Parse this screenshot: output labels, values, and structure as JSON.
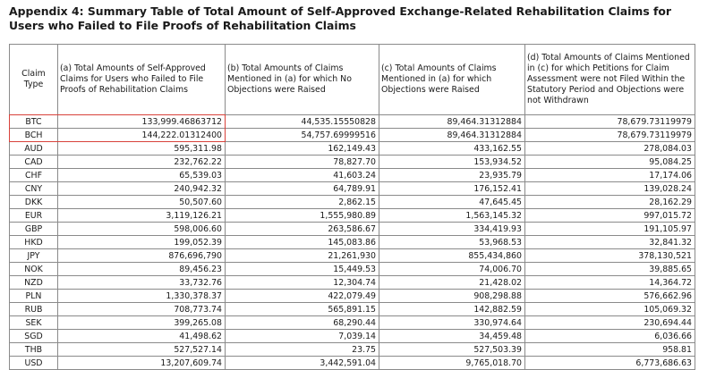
{
  "title": "Appendix 4: Summary Table of Total Amount of Self-Approved Exchange-Related Rehabilitation Claims for Users who Failed to File Proofs of Rehabilitation Claims",
  "headers": {
    "claim_type": "Claim Type",
    "a": "(a) Total Amounts of Self-Approved Claims for Users who Failed to File Proofs of Rehabilitation Claims",
    "b": "(b) Total Amounts of Claims Mentioned in (a) for which No Objections were Raised",
    "c": "(c) Total Amounts of Claims Mentioned in (a) for which Objections were Raised",
    "d": "(d) Total Amounts of Claims Mentioned in (c) for which Petitions for Claim Assessment were not Filed Within the Statutory Period and Objections were not Withdrawn"
  },
  "highlight_color": "#d8413a",
  "highlighted_rows": [
    "BTC",
    "BCH"
  ],
  "rows": [
    {
      "type": "BTC",
      "a": "133,999.46863712",
      "b": "44,535.15550828",
      "c": "89,464.31312884",
      "d": "78,679.73119979"
    },
    {
      "type": "BCH",
      "a": "144,222.01312400",
      "b": "54,757.69999516",
      "c": "89,464.31312884",
      "d": "78,679.73119979"
    },
    {
      "type": "AUD",
      "a": "595,311.98",
      "b": "162,149.43",
      "c": "433,162.55",
      "d": "278,084.03"
    },
    {
      "type": "CAD",
      "a": "232,762.22",
      "b": "78,827.70",
      "c": "153,934.52",
      "d": "95,084.25"
    },
    {
      "type": "CHF",
      "a": "65,539.03",
      "b": "41,603.24",
      "c": "23,935.79",
      "d": "17,174.06"
    },
    {
      "type": "CNY",
      "a": "240,942.32",
      "b": "64,789.91",
      "c": "176,152.41",
      "d": "139,028.24"
    },
    {
      "type": "DKK",
      "a": "50,507.60",
      "b": "2,862.15",
      "c": "47,645.45",
      "d": "28,162.29"
    },
    {
      "type": "EUR",
      "a": "3,119,126.21",
      "b": "1,555,980.89",
      "c": "1,563,145.32",
      "d": "997,015.72"
    },
    {
      "type": "GBP",
      "a": "598,006.60",
      "b": "263,586.67",
      "c": "334,419.93",
      "d": "191,105.97"
    },
    {
      "type": "HKD",
      "a": "199,052.39",
      "b": "145,083.86",
      "c": "53,968.53",
      "d": "32,841.32"
    },
    {
      "type": "JPY",
      "a": "876,696,790",
      "b": "21,261,930",
      "c": "855,434,860",
      "d": "378,130,521"
    },
    {
      "type": "NOK",
      "a": "89,456.23",
      "b": "15,449.53",
      "c": "74,006.70",
      "d": "39,885.65"
    },
    {
      "type": "NZD",
      "a": "33,732.76",
      "b": "12,304.74",
      "c": "21,428.02",
      "d": "14,364.72"
    },
    {
      "type": "PLN",
      "a": "1,330,378.37",
      "b": "422,079.49",
      "c": "908,298.88",
      "d": "576,662.96"
    },
    {
      "type": "RUB",
      "a": "708,773.74",
      "b": "565,891.15",
      "c": "142,882.59",
      "d": "105,069.32"
    },
    {
      "type": "SEK",
      "a": "399,265.08",
      "b": "68,290.44",
      "c": "330,974.64",
      "d": "230,694.44"
    },
    {
      "type": "SGD",
      "a": "41,498.62",
      "b": "7,039.14",
      "c": "34,459.48",
      "d": "6,036.66"
    },
    {
      "type": "THB",
      "a": "527,527.14",
      "b": "23.75",
      "c": "527,503.39",
      "d": "958.81"
    },
    {
      "type": "USD",
      "a": "13,207,609.74",
      "b": "3,442,591.04",
      "c": "9,765,018.70",
      "d": "6,773,686.63"
    }
  ]
}
